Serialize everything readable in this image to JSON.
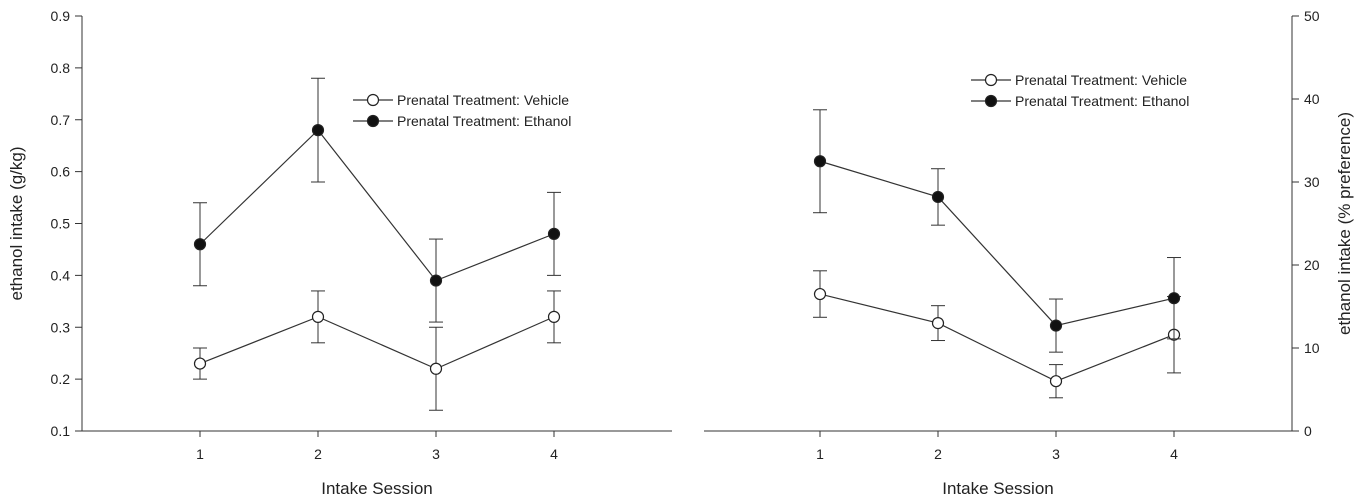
{
  "chart_data": [
    {
      "type": "line",
      "xlabel": "Intake Session",
      "ylabel": "ethanol intake (g/kg)",
      "ylim": [
        0.1,
        0.9
      ],
      "yticks": [
        "0.1",
        "0.2",
        "0.3",
        "0.4",
        "0.5",
        "0.6",
        "0.7",
        "0.8",
        "0.9"
      ],
      "categories": [
        "1",
        "2",
        "3",
        "4"
      ],
      "y_axis_side": "left",
      "legend_position": "top-center",
      "grid": false,
      "series": [
        {
          "name": "Prenatal Treatment: Vehicle",
          "marker": "open-circle",
          "values": [
            0.23,
            0.32,
            0.22,
            0.32
          ],
          "errors": [
            0.03,
            0.05,
            0.08,
            0.05
          ]
        },
        {
          "name": "Prenatal Treatment: Ethanol",
          "marker": "filled-circle",
          "values": [
            0.46,
            0.68,
            0.39,
            0.48
          ],
          "errors": [
            0.08,
            0.1,
            0.08,
            0.08
          ]
        }
      ]
    },
    {
      "type": "line",
      "xlabel": "Intake Session",
      "ylabel": "ethanol intake (% preference)",
      "ylim": [
        0,
        50
      ],
      "yticks": [
        "0",
        "10",
        "20",
        "30",
        "40",
        "50"
      ],
      "categories": [
        "1",
        "2",
        "3",
        "4"
      ],
      "y_axis_side": "right",
      "legend_position": "top-right",
      "grid": false,
      "series": [
        {
          "name": "Prenatal Treatment: Vehicle",
          "marker": "open-circle",
          "values": [
            16.5,
            13.0,
            6.0,
            11.6
          ],
          "errors": [
            2.8,
            2.1,
            2.0,
            4.6
          ]
        },
        {
          "name": "Prenatal Treatment: Ethanol",
          "marker": "filled-circle",
          "values": [
            32.5,
            28.2,
            12.7,
            16.0
          ],
          "errors": [
            6.2,
            3.4,
            3.2,
            4.9
          ]
        }
      ]
    }
  ]
}
